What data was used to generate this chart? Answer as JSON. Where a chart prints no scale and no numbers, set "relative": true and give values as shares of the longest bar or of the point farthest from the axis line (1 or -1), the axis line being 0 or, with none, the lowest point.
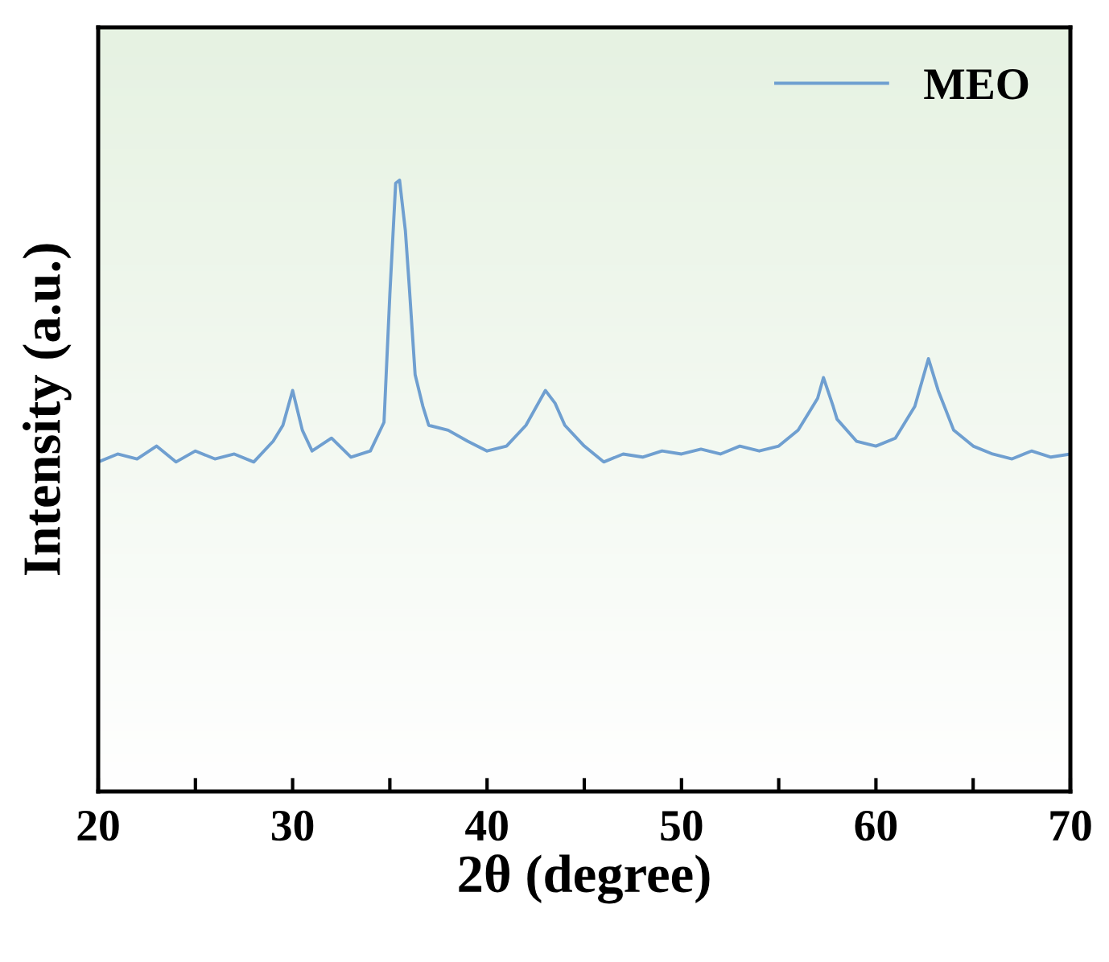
{
  "chart_data": {
    "type": "line",
    "xlabel": "2θ (degree)",
    "ylabel": "Intensity (a.u.)",
    "relative": true,
    "legend": "top right",
    "grid": false,
    "tick_labels": "x",
    "xlim": [
      20,
      70
    ],
    "xticks": [
      20,
      {
        "value": 25,
        "label": null
      },
      30,
      {
        "value": 35,
        "label": null
      },
      40,
      {
        "value": 45,
        "label": null
      },
      50,
      {
        "value": 55,
        "label": null
      },
      60,
      {
        "value": 65,
        "label": null
      },
      70
    ],
    "series": [
      {
        "name": "MEO",
        "color": "#6f9fd0",
        "x": [
          20,
          21,
          22,
          23,
          24,
          25,
          26,
          27,
          28,
          29,
          29.5,
          30,
          30.5,
          31,
          32,
          33,
          34,
          34.7,
          35.0,
          35.3,
          35.5,
          35.8,
          36.0,
          36.3,
          36.7,
          37,
          38,
          39,
          40,
          41,
          42,
          43,
          43.5,
          44,
          45,
          46,
          47,
          48,
          49,
          50,
          51,
          52,
          53,
          54,
          55,
          56,
          57,
          57.3,
          57.8,
          58,
          59,
          60,
          61,
          62,
          62.7,
          63.2,
          64,
          65,
          66,
          67,
          68,
          69,
          70
        ],
        "values": [
          0.539,
          0.552,
          0.544,
          0.565,
          0.539,
          0.557,
          0.544,
          0.552,
          0.539,
          0.573,
          0.599,
          0.656,
          0.591,
          0.557,
          0.578,
          0.547,
          0.557,
          0.604,
          0.813,
          0.995,
          1,
          0.917,
          0.826,
          0.682,
          0.63,
          0.599,
          0.591,
          0.573,
          0.557,
          0.565,
          0.599,
          0.656,
          0.635,
          0.599,
          0.565,
          0.539,
          0.552,
          0.547,
          0.557,
          0.552,
          0.56,
          0.552,
          0.565,
          0.557,
          0.565,
          0.591,
          0.643,
          0.677,
          0.63,
          0.609,
          0.573,
          0.565,
          0.578,
          0.63,
          0.708,
          0.656,
          0.591,
          0.565,
          0.552,
          0.544,
          0.557,
          0.547,
          0.552
        ]
      }
    ]
  }
}
